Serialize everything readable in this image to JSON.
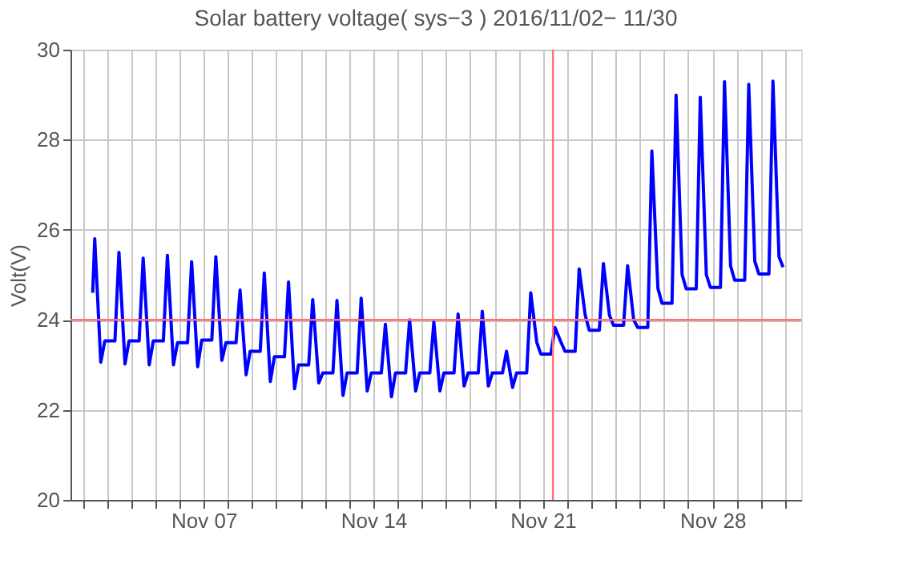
{
  "chart_data": {
    "type": "line",
    "title": "Solar battery voltage( sys−3 )  2016/11/02− 11/30",
    "ylabel": "Volt(V)",
    "xlim": [
      "2016-11-01T12:00",
      "2016-12-01T16:00"
    ],
    "xticks": [
      {
        "value": "2016-11-02",
        "label": null
      },
      {
        "value": "2016-11-03",
        "label": null
      },
      {
        "value": "2016-11-04",
        "label": null
      },
      {
        "value": "2016-11-05",
        "label": null
      },
      {
        "value": "2016-11-06",
        "label": null
      },
      {
        "value": "2016-11-07",
        "label": "Nov 07"
      },
      {
        "value": "2016-11-08",
        "label": null
      },
      {
        "value": "2016-11-09",
        "label": null
      },
      {
        "value": "2016-11-10",
        "label": null
      },
      {
        "value": "2016-11-11",
        "label": null
      },
      {
        "value": "2016-11-12",
        "label": null
      },
      {
        "value": "2016-11-13",
        "label": null
      },
      {
        "value": "2016-11-14",
        "label": "Nov 14"
      },
      {
        "value": "2016-11-15",
        "label": null
      },
      {
        "value": "2016-11-16",
        "label": null
      },
      {
        "value": "2016-11-17",
        "label": null
      },
      {
        "value": "2016-11-18",
        "label": null
      },
      {
        "value": "2016-11-19",
        "label": null
      },
      {
        "value": "2016-11-20",
        "label": null
      },
      {
        "value": "2016-11-21",
        "label": "Nov 21"
      },
      {
        "value": "2016-11-22",
        "label": null
      },
      {
        "value": "2016-11-23",
        "label": null
      },
      {
        "value": "2016-11-24",
        "label": null
      },
      {
        "value": "2016-11-25",
        "label": null
      },
      {
        "value": "2016-11-26",
        "label": null
      },
      {
        "value": "2016-11-27",
        "label": null
      },
      {
        "value": "2016-11-28",
        "label": "Nov 28"
      },
      {
        "value": "2016-11-29",
        "label": null
      },
      {
        "value": "2016-11-30",
        "label": null
      },
      {
        "value": "2016-12-01",
        "label": null
      }
    ],
    "ylim": [
      20,
      30
    ],
    "yticks": [
      20,
      22,
      24,
      26,
      28,
      30
    ],
    "grid": true,
    "marker": "none",
    "line_style": "solid",
    "ref_lines": [
      {
        "axis": "x",
        "value": "2016-11-21T10:00",
        "label": null,
        "color": "#ff7070"
      },
      {
        "axis": "y",
        "value": 24,
        "label": null,
        "color": "#ff7070"
      }
    ],
    "series": [
      {
        "color": "#0000ff",
        "x": [
          "2016-11-02T10:00",
          "2016-11-02T12:00",
          "2016-11-02T18:00",
          "2016-11-02T22:00",
          "2016-11-03T08:00",
          "2016-11-03T12:00",
          "2016-11-03T18:00",
          "2016-11-03T22:00",
          "2016-11-04T08:00",
          "2016-11-04T12:00",
          "2016-11-04T18:00",
          "2016-11-04T22:00",
          "2016-11-05T08:00",
          "2016-11-05T12:00",
          "2016-11-05T18:00",
          "2016-11-05T22:00",
          "2016-11-06T08:00",
          "2016-11-06T12:00",
          "2016-11-06T18:00",
          "2016-11-06T22:00",
          "2016-11-07T08:00",
          "2016-11-07T12:00",
          "2016-11-07T18:00",
          "2016-11-07T22:00",
          "2016-11-08T08:00",
          "2016-11-08T12:00",
          "2016-11-08T18:00",
          "2016-11-08T22:00",
          "2016-11-09T08:00",
          "2016-11-09T12:00",
          "2016-11-09T18:00",
          "2016-11-09T22:00",
          "2016-11-10T08:00",
          "2016-11-10T12:00",
          "2016-11-10T18:00",
          "2016-11-10T22:00",
          "2016-11-11T08:00",
          "2016-11-11T12:00",
          "2016-11-11T18:00",
          "2016-11-11T22:00",
          "2016-11-12T08:00",
          "2016-11-12T12:00",
          "2016-11-12T18:00",
          "2016-11-12T22:00",
          "2016-11-13T08:00",
          "2016-11-13T12:00",
          "2016-11-13T18:00",
          "2016-11-13T22:00",
          "2016-11-14T08:00",
          "2016-11-14T12:00",
          "2016-11-14T18:00",
          "2016-11-14T22:00",
          "2016-11-15T08:00",
          "2016-11-15T12:00",
          "2016-11-15T18:00",
          "2016-11-15T22:00",
          "2016-11-16T08:00",
          "2016-11-16T12:00",
          "2016-11-16T18:00",
          "2016-11-16T22:00",
          "2016-11-17T08:00",
          "2016-11-17T12:00",
          "2016-11-17T18:00",
          "2016-11-17T22:00",
          "2016-11-18T08:00",
          "2016-11-18T12:00",
          "2016-11-18T18:00",
          "2016-11-18T22:00",
          "2016-11-19T08:00",
          "2016-11-19T12:00",
          "2016-11-19T18:00",
          "2016-11-19T22:00",
          "2016-11-20T08:00",
          "2016-11-20T12:00",
          "2016-11-20T18:00",
          "2016-11-20T22:00",
          "2016-11-21T08:00",
          "2016-11-21T12:00",
          "2016-11-21T18:00",
          "2016-11-21T22:00",
          "2016-11-22T08:00",
          "2016-11-22T12:00",
          "2016-11-22T18:00",
          "2016-11-22T22:00",
          "2016-11-23T08:00",
          "2016-11-23T12:00",
          "2016-11-23T18:00",
          "2016-11-23T22:00",
          "2016-11-24T08:00",
          "2016-11-24T12:00",
          "2016-11-24T18:00",
          "2016-11-24T22:00",
          "2016-11-25T08:00",
          "2016-11-25T12:00",
          "2016-11-25T18:00",
          "2016-11-25T22:00",
          "2016-11-26T08:00",
          "2016-11-26T12:00",
          "2016-11-26T18:00",
          "2016-11-26T22:00",
          "2016-11-27T08:00",
          "2016-11-27T12:00",
          "2016-11-27T18:00",
          "2016-11-27T22:00",
          "2016-11-28T08:00",
          "2016-11-28T12:00",
          "2016-11-28T18:00",
          "2016-11-28T22:00",
          "2016-11-29T08:00",
          "2016-11-29T12:00",
          "2016-11-29T18:00",
          "2016-11-29T22:00",
          "2016-11-30T08:00",
          "2016-11-30T12:00",
          "2016-11-30T18:00",
          "2016-11-30T22:00"
        ],
        "values": [
          24.6,
          25.8,
          23.06,
          23.53,
          23.53,
          25.5,
          23.02,
          23.53,
          23.53,
          25.37,
          23.0,
          23.53,
          23.53,
          25.43,
          23.0,
          23.49,
          23.49,
          25.29,
          22.96,
          23.55,
          23.55,
          25.4,
          23.1,
          23.49,
          23.49,
          24.66,
          22.78,
          23.3,
          23.3,
          25.04,
          22.63,
          23.18,
          23.18,
          24.84,
          22.47,
          23.0,
          23.0,
          24.45,
          22.6,
          22.82,
          22.82,
          24.43,
          22.32,
          22.82,
          22.82,
          24.48,
          22.42,
          22.82,
          22.82,
          23.9,
          22.29,
          22.82,
          22.82,
          24.0,
          22.42,
          22.82,
          22.82,
          23.95,
          22.42,
          22.82,
          22.82,
          24.13,
          22.53,
          22.82,
          22.82,
          24.19,
          22.53,
          22.82,
          22.82,
          23.3,
          22.5,
          22.82,
          22.82,
          24.6,
          23.5,
          23.24,
          23.24,
          23.83,
          23.5,
          23.3,
          23.3,
          25.13,
          24.1,
          23.77,
          23.77,
          25.25,
          24.1,
          23.88,
          23.88,
          25.2,
          24.0,
          23.83,
          23.83,
          27.75,
          24.7,
          24.37,
          24.37,
          28.99,
          25.0,
          24.69,
          24.69,
          28.94,
          25.0,
          24.72,
          24.72,
          29.29,
          25.2,
          24.88,
          24.88,
          29.23,
          25.3,
          25.02,
          25.02,
          29.3,
          25.4,
          25.17
        ]
      }
    ]
  }
}
